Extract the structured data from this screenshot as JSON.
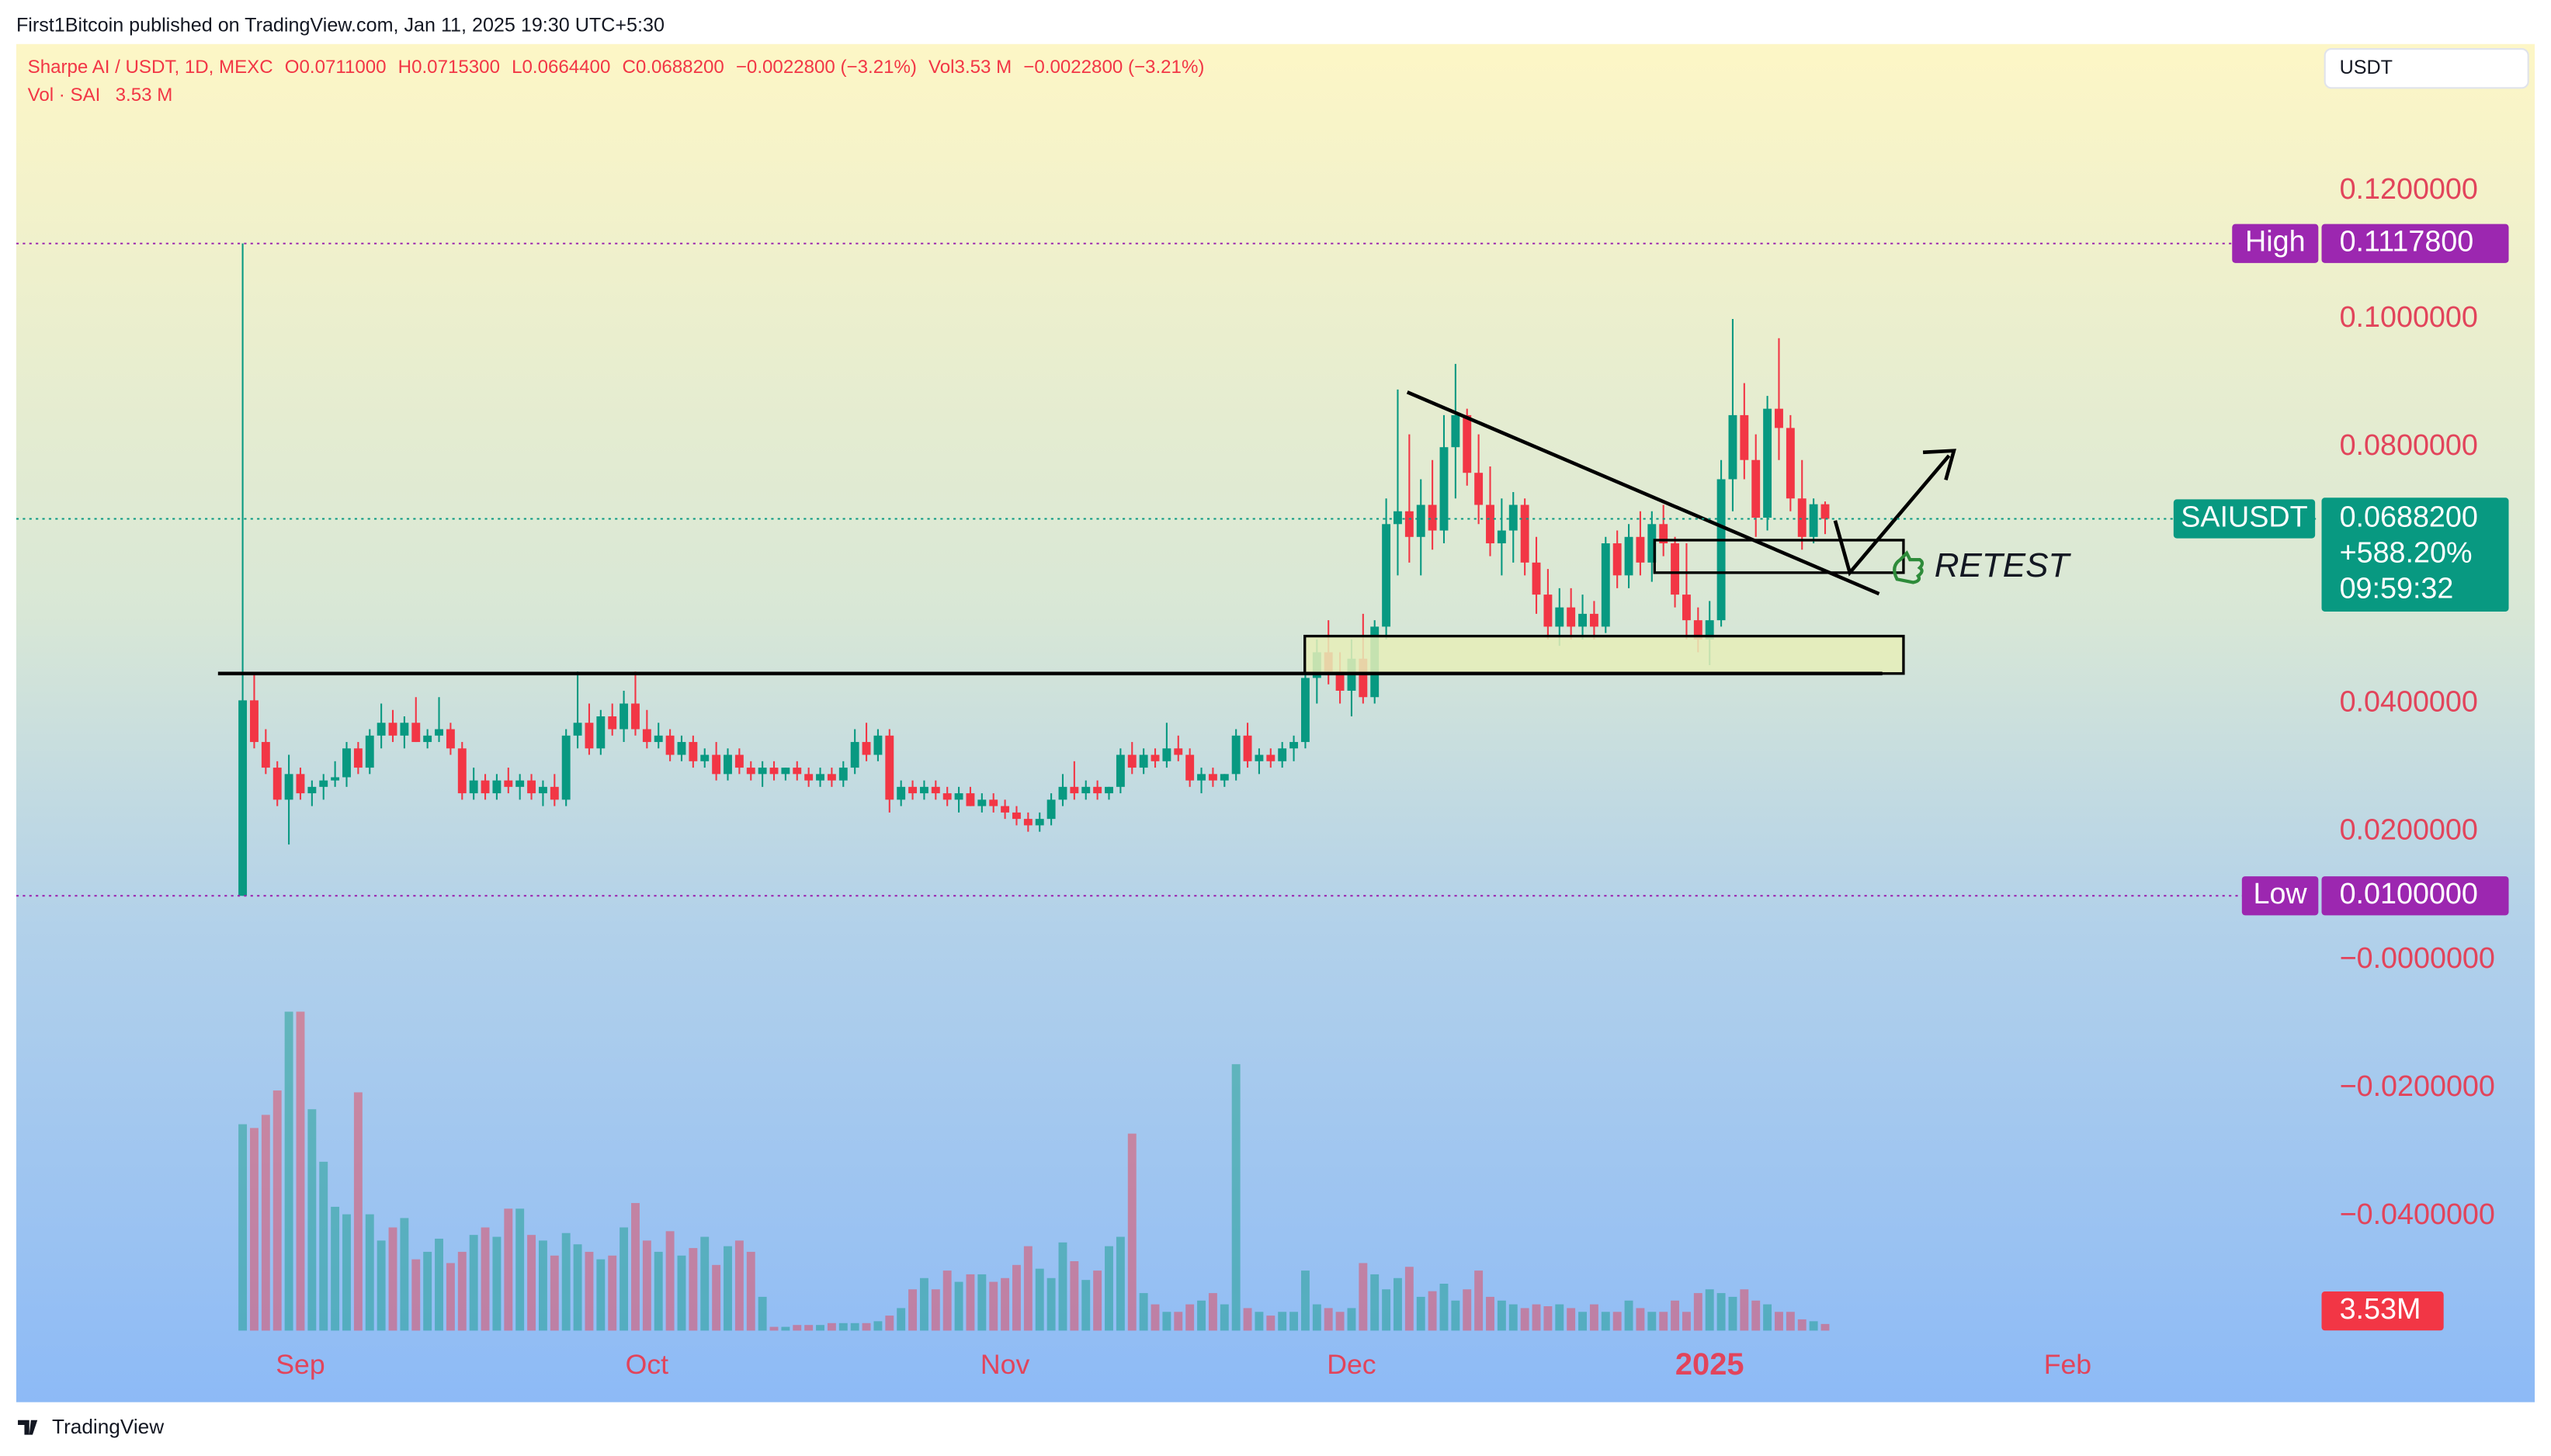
{
  "header": {
    "published": "First1Bitcoin published on TradingView.com, Jan 11, 2025 19:30 UTC+5:30",
    "symbol": "Sharpe AI / USDT, 1D, MEXC",
    "ohlc": [
      {
        "k": "O",
        "v": "0.0711000"
      },
      {
        "k": "H",
        "v": "0.0715300"
      },
      {
        "k": "L",
        "v": "0.0664400"
      },
      {
        "k": "C",
        "v": "0.0688200"
      }
    ],
    "change": "−0.0022800 (−3.21%)",
    "vol_key": "Vol",
    "vol_value": "3.53 M",
    "vol_change": "−0.0022800 (−3.21%)",
    "vol_study": "Vol · SAI",
    "vol_study_value": "3.53 M",
    "currency": "USDT"
  },
  "footer": {
    "brand": "TradingView"
  },
  "chart_data": {
    "type": "candlestick",
    "xlim": [
      -19.6,
      179.7
    ],
    "xticks": [
      {
        "value": 5,
        "label": "Sep"
      },
      {
        "value": 35,
        "label": "Oct"
      },
      {
        "value": 66,
        "label": "Nov"
      },
      {
        "value": 96,
        "label": "Dec"
      },
      {
        "value": 127,
        "label": "2025",
        "bold": true
      },
      {
        "value": 158,
        "label": "Feb"
      }
    ],
    "ylim": [
      -0.0685,
      0.1429
    ],
    "yticks": [
      {
        "value": 0.12,
        "label": "0.1200000"
      },
      {
        "value": 0.1,
        "label": "0.1000000"
      },
      {
        "value": 0.08,
        "label": "0.0800000"
      },
      {
        "value": 0.04,
        "label": "0.0400000"
      },
      {
        "value": 0.02,
        "label": "0.0200000"
      },
      {
        "value": 0,
        "label": "−0.0000000"
      },
      {
        "value": -0.02,
        "label": "−0.0200000"
      },
      {
        "value": -0.04,
        "label": "−0.0400000"
      }
    ],
    "grid": false,
    "up_color": "#089981",
    "down_color": "#f23645",
    "high": {
      "name": "High",
      "value": 0.11178,
      "label": "0.1117800",
      "color": "#9c27b0"
    },
    "low": {
      "name": "Low",
      "value": 0.01,
      "label": "0.0100000",
      "color": "#9c27b0"
    },
    "last": {
      "name": "SAIUSDT",
      "value": 0.06882,
      "label": "0.0688200",
      "change": "+588.20%",
      "countdown": "09:59:32",
      "color": "#089981"
    },
    "annotation": "RETEST",
    "candles": [
      [
        0.01,
        0.1118,
        0.01,
        0.0405
      ],
      [
        0.0405,
        0.0445,
        0.033,
        0.034
      ],
      [
        0.034,
        0.036,
        0.029,
        0.03
      ],
      [
        0.03,
        0.031,
        0.024,
        0.025
      ],
      [
        0.025,
        0.032,
        0.018,
        0.029
      ],
      [
        0.029,
        0.03,
        0.025,
        0.026
      ],
      [
        0.026,
        0.028,
        0.024,
        0.027
      ],
      [
        0.027,
        0.029,
        0.025,
        0.028
      ],
      [
        0.028,
        0.031,
        0.027,
        0.0285
      ],
      [
        0.0285,
        0.034,
        0.027,
        0.033
      ],
      [
        0.033,
        0.034,
        0.029,
        0.03
      ],
      [
        0.03,
        0.036,
        0.029,
        0.035
      ],
      [
        0.035,
        0.04,
        0.033,
        0.037
      ],
      [
        0.037,
        0.039,
        0.034,
        0.035
      ],
      [
        0.035,
        0.038,
        0.033,
        0.037
      ],
      [
        0.037,
        0.041,
        0.034,
        0.034
      ],
      [
        0.034,
        0.036,
        0.033,
        0.035
      ],
      [
        0.035,
        0.041,
        0.034,
        0.036
      ],
      [
        0.036,
        0.037,
        0.032,
        0.033
      ],
      [
        0.033,
        0.034,
        0.025,
        0.026
      ],
      [
        0.026,
        0.03,
        0.025,
        0.028
      ],
      [
        0.028,
        0.029,
        0.025,
        0.026
      ],
      [
        0.026,
        0.029,
        0.025,
        0.028
      ],
      [
        0.028,
        0.03,
        0.026,
        0.027
      ],
      [
        0.027,
        0.029,
        0.025,
        0.028
      ],
      [
        0.028,
        0.029,
        0.025,
        0.026
      ],
      [
        0.026,
        0.028,
        0.024,
        0.027
      ],
      [
        0.027,
        0.029,
        0.024,
        0.025
      ],
      [
        0.025,
        0.036,
        0.024,
        0.035
      ],
      [
        0.035,
        0.045,
        0.033,
        0.037
      ],
      [
        0.037,
        0.04,
        0.032,
        0.033
      ],
      [
        0.033,
        0.039,
        0.032,
        0.038
      ],
      [
        0.038,
        0.04,
        0.035,
        0.036
      ],
      [
        0.036,
        0.042,
        0.034,
        0.04
      ],
      [
        0.04,
        0.045,
        0.035,
        0.036
      ],
      [
        0.036,
        0.039,
        0.033,
        0.034
      ],
      [
        0.034,
        0.037,
        0.033,
        0.035
      ],
      [
        0.035,
        0.036,
        0.031,
        0.032
      ],
      [
        0.032,
        0.035,
        0.031,
        0.034
      ],
      [
        0.034,
        0.035,
        0.03,
        0.031
      ],
      [
        0.031,
        0.033,
        0.03,
        0.032
      ],
      [
        0.032,
        0.034,
        0.028,
        0.029
      ],
      [
        0.029,
        0.033,
        0.028,
        0.032
      ],
      [
        0.032,
        0.033,
        0.029,
        0.03
      ],
      [
        0.03,
        0.031,
        0.028,
        0.029
      ],
      [
        0.029,
        0.031,
        0.027,
        0.03
      ],
      [
        0.03,
        0.031,
        0.028,
        0.029
      ],
      [
        0.029,
        0.03,
        0.028,
        0.03
      ],
      [
        0.03,
        0.031,
        0.028,
        0.029
      ],
      [
        0.029,
        0.03,
        0.027,
        0.028
      ],
      [
        0.028,
        0.03,
        0.027,
        0.029
      ],
      [
        0.029,
        0.03,
        0.027,
        0.028
      ],
      [
        0.028,
        0.031,
        0.027,
        0.03
      ],
      [
        0.03,
        0.036,
        0.029,
        0.034
      ],
      [
        0.034,
        0.037,
        0.031,
        0.032
      ],
      [
        0.032,
        0.036,
        0.031,
        0.035
      ],
      [
        0.035,
        0.036,
        0.023,
        0.025
      ],
      [
        0.025,
        0.028,
        0.024,
        0.027
      ],
      [
        0.027,
        0.028,
        0.025,
        0.026
      ],
      [
        0.026,
        0.028,
        0.025,
        0.027
      ],
      [
        0.027,
        0.028,
        0.025,
        0.026
      ],
      [
        0.026,
        0.027,
        0.024,
        0.025
      ],
      [
        0.025,
        0.027,
        0.023,
        0.026
      ],
      [
        0.026,
        0.027,
        0.024,
        0.024
      ],
      [
        0.024,
        0.026,
        0.023,
        0.025
      ],
      [
        0.025,
        0.026,
        0.023,
        0.024
      ],
      [
        0.024,
        0.025,
        0.022,
        0.023
      ],
      [
        0.023,
        0.024,
        0.021,
        0.022
      ],
      [
        0.022,
        0.023,
        0.02,
        0.021
      ],
      [
        0.021,
        0.023,
        0.02,
        0.022
      ],
      [
        0.022,
        0.026,
        0.021,
        0.025
      ],
      [
        0.025,
        0.029,
        0.024,
        0.027
      ],
      [
        0.027,
        0.031,
        0.025,
        0.026
      ],
      [
        0.026,
        0.028,
        0.025,
        0.027
      ],
      [
        0.027,
        0.028,
        0.025,
        0.026
      ],
      [
        0.026,
        0.027,
        0.025,
        0.027
      ],
      [
        0.027,
        0.033,
        0.026,
        0.032
      ],
      [
        0.032,
        0.034,
        0.029,
        0.03
      ],
      [
        0.03,
        0.033,
        0.029,
        0.032
      ],
      [
        0.032,
        0.033,
        0.03,
        0.031
      ],
      [
        0.031,
        0.037,
        0.03,
        0.033
      ],
      [
        0.033,
        0.035,
        0.031,
        0.032
      ],
      [
        0.032,
        0.033,
        0.027,
        0.028
      ],
      [
        0.028,
        0.03,
        0.026,
        0.029
      ],
      [
        0.029,
        0.03,
        0.027,
        0.028
      ],
      [
        0.028,
        0.029,
        0.027,
        0.029
      ],
      [
        0.029,
        0.036,
        0.028,
        0.035
      ],
      [
        0.035,
        0.037,
        0.03,
        0.031
      ],
      [
        0.031,
        0.033,
        0.029,
        0.032
      ],
      [
        0.032,
        0.033,
        0.03,
        0.031
      ],
      [
        0.031,
        0.034,
        0.03,
        0.033
      ],
      [
        0.033,
        0.035,
        0.031,
        0.034
      ],
      [
        0.034,
        0.045,
        0.033,
        0.044
      ],
      [
        0.044,
        0.05,
        0.04,
        0.048
      ],
      [
        0.048,
        0.053,
        0.043,
        0.045
      ],
      [
        0.045,
        0.048,
        0.04,
        0.042
      ],
      [
        0.042,
        0.05,
        0.038,
        0.047
      ],
      [
        0.047,
        0.054,
        0.04,
        0.041
      ],
      [
        0.041,
        0.053,
        0.04,
        0.052
      ],
      [
        0.052,
        0.072,
        0.05,
        0.068
      ],
      [
        0.068,
        0.089,
        0.06,
        0.07
      ],
      [
        0.07,
        0.082,
        0.062,
        0.066
      ],
      [
        0.066,
        0.075,
        0.06,
        0.071
      ],
      [
        0.071,
        0.078,
        0.064,
        0.067
      ],
      [
        0.067,
        0.085,
        0.065,
        0.08
      ],
      [
        0.08,
        0.093,
        0.072,
        0.085
      ],
      [
        0.085,
        0.086,
        0.074,
        0.076
      ],
      [
        0.076,
        0.082,
        0.068,
        0.071
      ],
      [
        0.071,
        0.077,
        0.063,
        0.065
      ],
      [
        0.065,
        0.072,
        0.06,
        0.067
      ],
      [
        0.067,
        0.073,
        0.062,
        0.071
      ],
      [
        0.071,
        0.072,
        0.06,
        0.062
      ],
      [
        0.062,
        0.066,
        0.054,
        0.057
      ],
      [
        0.057,
        0.061,
        0.05,
        0.052
      ],
      [
        0.052,
        0.058,
        0.049,
        0.055
      ],
      [
        0.055,
        0.058,
        0.05,
        0.052
      ],
      [
        0.052,
        0.057,
        0.05,
        0.054
      ],
      [
        0.054,
        0.056,
        0.05,
        0.052
      ],
      [
        0.052,
        0.066,
        0.051,
        0.065
      ],
      [
        0.065,
        0.067,
        0.058,
        0.06
      ],
      [
        0.06,
        0.068,
        0.058,
        0.066
      ],
      [
        0.066,
        0.07,
        0.06,
        0.062
      ],
      [
        0.062,
        0.07,
        0.059,
        0.068
      ],
      [
        0.068,
        0.071,
        0.063,
        0.065
      ],
      [
        0.065,
        0.066,
        0.055,
        0.057
      ],
      [
        0.057,
        0.065,
        0.05,
        0.053
      ],
      [
        0.053,
        0.055,
        0.048,
        0.05
      ],
      [
        0.05,
        0.056,
        0.046,
        0.053
      ],
      [
        0.053,
        0.078,
        0.052,
        0.075
      ],
      [
        0.075,
        0.1,
        0.07,
        0.085
      ],
      [
        0.085,
        0.09,
        0.075,
        0.078
      ],
      [
        0.078,
        0.082,
        0.066,
        0.069
      ],
      [
        0.069,
        0.088,
        0.067,
        0.086
      ],
      [
        0.086,
        0.097,
        0.078,
        0.083
      ],
      [
        0.083,
        0.085,
        0.07,
        0.072
      ],
      [
        0.072,
        0.078,
        0.064,
        0.066
      ],
      [
        0.066,
        0.072,
        0.065,
        0.0711
      ],
      [
        0.0711,
        0.07153,
        0.06644,
        0.06882
      ]
    ],
    "volume_lim": [
      0,
      215
    ],
    "volume": [
      110,
      108,
      115,
      128,
      170,
      170,
      118,
      90,
      66,
      62,
      127,
      62,
      48,
      55,
      60,
      38,
      42,
      49,
      36,
      42,
      51,
      55,
      50,
      65,
      65,
      51,
      48,
      40,
      52,
      46,
      42,
      38,
      40,
      55,
      68,
      48,
      42,
      53,
      40,
      44,
      50,
      35,
      45,
      48,
      42,
      18,
      2,
      2,
      3,
      3,
      3,
      4,
      4,
      4,
      4,
      5,
      8,
      12,
      22,
      28,
      22,
      32,
      26,
      30,
      30,
      26,
      28,
      35,
      45,
      33,
      28,
      47,
      37,
      27,
      32,
      45,
      50,
      105,
      20,
      14,
      10,
      10,
      14,
      16,
      20,
      14,
      142,
      12,
      10,
      8,
      10,
      10,
      32,
      14,
      12,
      10,
      12,
      36,
      30,
      22,
      28,
      34,
      18,
      21,
      25,
      16,
      22,
      32,
      18,
      16,
      14,
      12,
      14,
      13,
      14,
      12,
      10,
      14,
      10,
      10,
      16,
      12,
      10,
      10,
      16,
      10,
      20,
      22,
      20,
      18,
      22,
      16,
      14,
      10,
      10,
      6,
      5,
      3.53
    ],
    "volume_label": "3.53M"
  }
}
